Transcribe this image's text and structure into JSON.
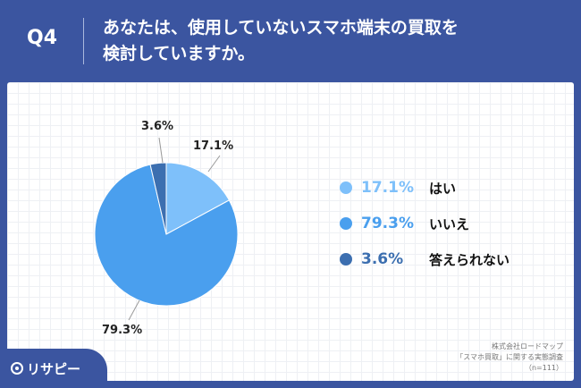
{
  "header": {
    "question_number": "Q4",
    "question_line1": "あなたは、使用していないスマホ端末の買取を",
    "question_line2": "検討していますか。"
  },
  "chart_data": {
    "type": "pie",
    "slices": [
      {
        "label": "はい",
        "value": 17.1,
        "display": "17.1%",
        "color": "#7ec0fa"
      },
      {
        "label": "いいえ",
        "value": 79.3,
        "display": "79.3%",
        "color": "#4a9fee"
      },
      {
        "label": "答えられない",
        "value": 3.6,
        "display": "3.6%",
        "color": "#3c6fb0"
      }
    ],
    "start_angle": "top",
    "direction": "clockwise",
    "legend_position": "right"
  },
  "source": {
    "line1": "株式会社ロードマップ",
    "line2": "「スマホ買取」に関する実態調査",
    "line3": "（n=111）"
  },
  "logo": {
    "text": "リサピー"
  }
}
